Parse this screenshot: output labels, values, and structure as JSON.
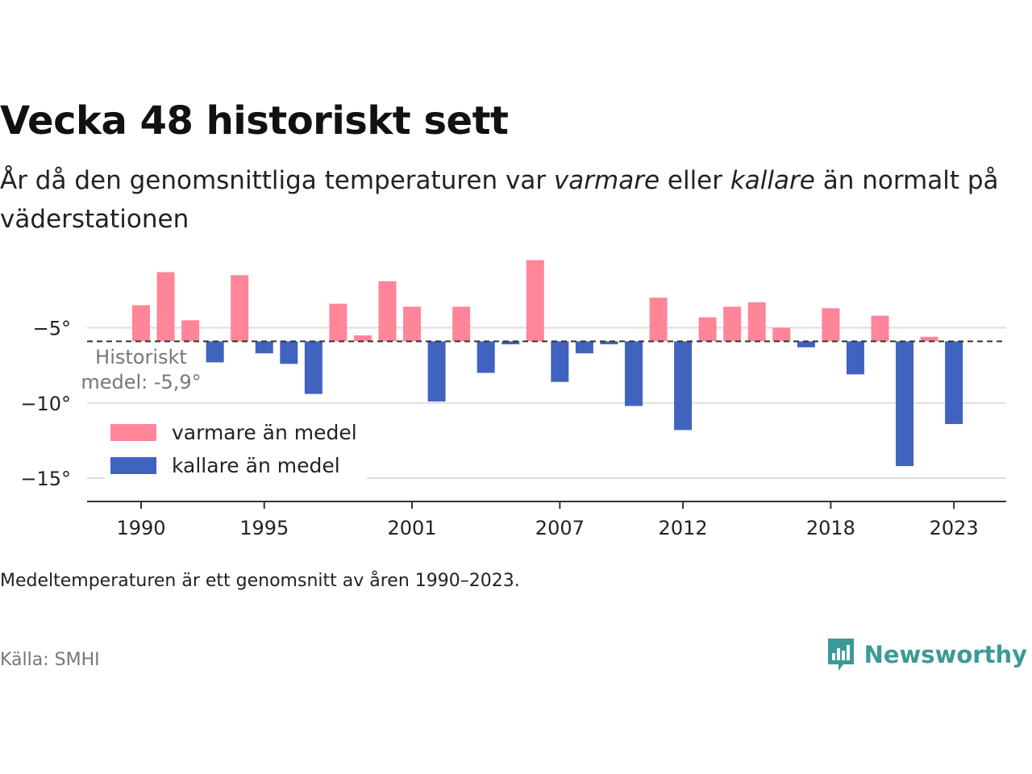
{
  "header": {
    "title": "Vecka 48 historiskt sett",
    "subtitle_part1": "År då den genomsnittliga temperaturen var ",
    "subtitle_em1": "varmare",
    "subtitle_part2": " eller ",
    "subtitle_em2": "kallare",
    "subtitle_part3": " än normalt på väderstationen"
  },
  "chart_data": {
    "type": "bar",
    "baseline": -5.9,
    "baseline_label_line1": "Historiskt",
    "baseline_label_line2": "medel: -5,9°",
    "x": [
      1990,
      1991,
      1992,
      1993,
      1994,
      1995,
      1996,
      1997,
      1998,
      1999,
      2000,
      2001,
      2002,
      2003,
      2004,
      2005,
      2006,
      2007,
      2008,
      2009,
      2010,
      2011,
      2012,
      2013,
      2014,
      2015,
      2016,
      2017,
      2018,
      2019,
      2020,
      2021,
      2022,
      2023
    ],
    "values": [
      -3.5,
      -1.3,
      -4.5,
      -7.3,
      -1.5,
      -6.7,
      -7.4,
      -9.4,
      -3.4,
      -5.5,
      -1.9,
      -3.6,
      -9.9,
      -3.6,
      -8.0,
      -6.1,
      -0.5,
      -8.6,
      -6.7,
      -6.1,
      -10.2,
      -3.0,
      -11.8,
      -4.3,
      -3.6,
      -3.3,
      -5.0,
      -6.3,
      -3.7,
      -8.1,
      -4.2,
      -14.2,
      -5.6,
      -11.4
    ],
    "x_ticks": [
      1990,
      1995,
      2001,
      2007,
      2012,
      2018,
      2023
    ],
    "y_ticks": [
      -5,
      -10,
      -15
    ],
    "y_tick_labels": [
      "−5°",
      "−10°",
      "−15°"
    ],
    "ylim": [
      -16.5,
      0.5
    ],
    "grid": true,
    "legend": {
      "placement": "bottom-left",
      "warm_label": "varmare än medel",
      "cold_label": "kallare än medel"
    },
    "colors": {
      "warm": "#ff8598",
      "cold": "#4063bf",
      "grid": "#dddddd",
      "axis": "#333333",
      "baseline": "#333333"
    }
  },
  "footer": {
    "note": "Medeltemperaturen är ett genomsnitt av åren 1990–2023.",
    "source": "Källa: SMHI",
    "brand": "Newsworthy",
    "brand_color": "#3a9a98",
    "brand_icon": "bar-chart-speech-bubble-icon"
  }
}
